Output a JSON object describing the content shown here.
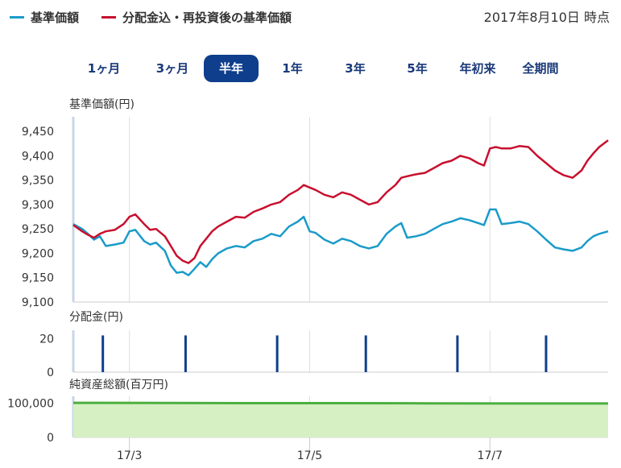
{
  "legend": {
    "nav_label": "基準価額",
    "nav_color": "#1a9bc9",
    "reinvest_label": "分配金込・再投資後の基準価額",
    "reinvest_color": "#c8102e"
  },
  "as_of": "2017年8月10日 時点",
  "tabs": [
    {
      "label": "1ヶ月",
      "active": false
    },
    {
      "label": "3ヶ月",
      "active": false
    },
    {
      "label": "半年",
      "active": true
    },
    {
      "label": "1年",
      "active": false
    },
    {
      "label": "3年",
      "active": false
    },
    {
      "label": "5年",
      "active": false
    },
    {
      "label": "年初来",
      "active": false
    },
    {
      "label": "全期間",
      "active": false
    }
  ],
  "colors": {
    "active_tab_bg": "#0e3e8c",
    "tab_text": "#1a3a7a",
    "distribution_bar": "#0e3e8c",
    "net_assets_line": "#4caf3f",
    "net_assets_fill": "#d6f0c4"
  },
  "chart_data": [
    {
      "type": "line",
      "ylabel": "基準価額(円)",
      "ylim": [
        9100,
        9480
      ],
      "yticks": [
        9100,
        9150,
        9200,
        9250,
        9300,
        9350,
        9400,
        9450
      ],
      "ytick_labels": [
        "9,100",
        "9,150",
        "9,200",
        "9,250",
        "9,300",
        "9,350",
        "9,400",
        "9,450"
      ],
      "xlim": [
        "2017-02-10",
        "2017-08-10"
      ],
      "xticks": [
        "2017-03-01",
        "2017-05-01",
        "2017-07-01"
      ],
      "xtick_labels": [
        "17/3",
        "17/5",
        "17/7"
      ],
      "grid": "vertical",
      "series": [
        {
          "name": "基準価額",
          "color": "#1a9bc9",
          "points": [
            [
              "2017-02-10",
              9260
            ],
            [
              "2017-02-13",
              9250
            ],
            [
              "2017-02-15",
              9240
            ],
            [
              "2017-02-17",
              9228
            ],
            [
              "2017-02-19",
              9235
            ],
            [
              "2017-02-21",
              9215
            ],
            [
              "2017-02-24",
              9218
            ],
            [
              "2017-02-27",
              9222
            ],
            [
              "2017-03-01",
              9245
            ],
            [
              "2017-03-03",
              9248
            ],
            [
              "2017-03-06",
              9225
            ],
            [
              "2017-03-08",
              9218
            ],
            [
              "2017-03-10",
              9222
            ],
            [
              "2017-03-13",
              9205
            ],
            [
              "2017-03-15",
              9175
            ],
            [
              "2017-03-17",
              9160
            ],
            [
              "2017-03-19",
              9162
            ],
            [
              "2017-03-21",
              9155
            ],
            [
              "2017-03-23",
              9168
            ],
            [
              "2017-03-25",
              9182
            ],
            [
              "2017-03-27",
              9172
            ],
            [
              "2017-03-29",
              9188
            ],
            [
              "2017-03-31",
              9200
            ],
            [
              "2017-04-03",
              9210
            ],
            [
              "2017-04-06",
              9215
            ],
            [
              "2017-04-09",
              9212
            ],
            [
              "2017-04-12",
              9225
            ],
            [
              "2017-04-15",
              9230
            ],
            [
              "2017-04-18",
              9240
            ],
            [
              "2017-04-21",
              9235
            ],
            [
              "2017-04-24",
              9255
            ],
            [
              "2017-04-27",
              9265
            ],
            [
              "2017-04-29",
              9275
            ],
            [
              "2017-05-01",
              9245
            ],
            [
              "2017-05-03",
              9242
            ],
            [
              "2017-05-06",
              9228
            ],
            [
              "2017-05-09",
              9220
            ],
            [
              "2017-05-12",
              9230
            ],
            [
              "2017-05-15",
              9225
            ],
            [
              "2017-05-18",
              9215
            ],
            [
              "2017-05-21",
              9210
            ],
            [
              "2017-05-24",
              9215
            ],
            [
              "2017-05-27",
              9240
            ],
            [
              "2017-05-30",
              9255
            ],
            [
              "2017-06-01",
              9262
            ],
            [
              "2017-06-03",
              9232
            ],
            [
              "2017-06-06",
              9235
            ],
            [
              "2017-06-09",
              9240
            ],
            [
              "2017-06-12",
              9250
            ],
            [
              "2017-06-15",
              9260
            ],
            [
              "2017-06-18",
              9265
            ],
            [
              "2017-06-21",
              9272
            ],
            [
              "2017-06-24",
              9268
            ],
            [
              "2017-06-27",
              9262
            ],
            [
              "2017-06-29",
              9258
            ],
            [
              "2017-07-01",
              9290
            ],
            [
              "2017-07-03",
              9290
            ],
            [
              "2017-07-05",
              9260
            ],
            [
              "2017-07-08",
              9262
            ],
            [
              "2017-07-11",
              9265
            ],
            [
              "2017-07-14",
              9260
            ],
            [
              "2017-07-17",
              9245
            ],
            [
              "2017-07-20",
              9228
            ],
            [
              "2017-07-23",
              9212
            ],
            [
              "2017-07-26",
              9208
            ],
            [
              "2017-07-29",
              9205
            ],
            [
              "2017-08-01",
              9212
            ],
            [
              "2017-08-03",
              9225
            ],
            [
              "2017-08-05",
              9235
            ],
            [
              "2017-08-07",
              9240
            ],
            [
              "2017-08-10",
              9245
            ]
          ]
        },
        {
          "name": "分配金込・再投資後の基準価額",
          "color": "#c8102e",
          "points": [
            [
              "2017-02-10",
              9258
            ],
            [
              "2017-02-13",
              9245
            ],
            [
              "2017-02-15",
              9238
            ],
            [
              "2017-02-17",
              9232
            ],
            [
              "2017-02-19",
              9240
            ],
            [
              "2017-02-21",
              9245
            ],
            [
              "2017-02-24",
              9248
            ],
            [
              "2017-02-27",
              9260
            ],
            [
              "2017-03-01",
              9275
            ],
            [
              "2017-03-03",
              9280
            ],
            [
              "2017-03-06",
              9260
            ],
            [
              "2017-03-08",
              9248
            ],
            [
              "2017-03-10",
              9250
            ],
            [
              "2017-03-13",
              9235
            ],
            [
              "2017-03-15",
              9215
            ],
            [
              "2017-03-17",
              9195
            ],
            [
              "2017-03-19",
              9185
            ],
            [
              "2017-03-21",
              9180
            ],
            [
              "2017-03-23",
              9190
            ],
            [
              "2017-03-25",
              9215
            ],
            [
              "2017-03-27",
              9230
            ],
            [
              "2017-03-29",
              9245
            ],
            [
              "2017-03-31",
              9255
            ],
            [
              "2017-04-03",
              9265
            ],
            [
              "2017-04-06",
              9275
            ],
            [
              "2017-04-09",
              9273
            ],
            [
              "2017-04-12",
              9285
            ],
            [
              "2017-04-15",
              9292
            ],
            [
              "2017-04-18",
              9300
            ],
            [
              "2017-04-21",
              9305
            ],
            [
              "2017-04-24",
              9320
            ],
            [
              "2017-04-27",
              9330
            ],
            [
              "2017-04-29",
              9340
            ],
            [
              "2017-05-01",
              9335
            ],
            [
              "2017-05-03",
              9330
            ],
            [
              "2017-05-06",
              9320
            ],
            [
              "2017-05-09",
              9315
            ],
            [
              "2017-05-12",
              9325
            ],
            [
              "2017-05-15",
              9320
            ],
            [
              "2017-05-18",
              9310
            ],
            [
              "2017-05-21",
              9300
            ],
            [
              "2017-05-24",
              9305
            ],
            [
              "2017-05-27",
              9325
            ],
            [
              "2017-05-30",
              9340
            ],
            [
              "2017-06-01",
              9355
            ],
            [
              "2017-06-03",
              9358
            ],
            [
              "2017-06-06",
              9362
            ],
            [
              "2017-06-09",
              9365
            ],
            [
              "2017-06-12",
              9375
            ],
            [
              "2017-06-15",
              9385
            ],
            [
              "2017-06-18",
              9390
            ],
            [
              "2017-06-21",
              9400
            ],
            [
              "2017-06-24",
              9395
            ],
            [
              "2017-06-27",
              9385
            ],
            [
              "2017-06-29",
              9380
            ],
            [
              "2017-07-01",
              9415
            ],
            [
              "2017-07-03",
              9418
            ],
            [
              "2017-07-05",
              9415
            ],
            [
              "2017-07-08",
              9415
            ],
            [
              "2017-07-11",
              9420
            ],
            [
              "2017-07-14",
              9418
            ],
            [
              "2017-07-17",
              9400
            ],
            [
              "2017-07-20",
              9385
            ],
            [
              "2017-07-23",
              9370
            ],
            [
              "2017-07-26",
              9360
            ],
            [
              "2017-07-29",
              9355
            ],
            [
              "2017-08-01",
              9370
            ],
            [
              "2017-08-03",
              9390
            ],
            [
              "2017-08-05",
              9405
            ],
            [
              "2017-08-07",
              9418
            ],
            [
              "2017-08-10",
              9432
            ]
          ]
        }
      ]
    },
    {
      "type": "bar",
      "ylabel": "分配金(円)",
      "ylim": [
        0,
        25
      ],
      "yticks": [
        0,
        20
      ],
      "ytick_labels": [
        "0",
        "20"
      ],
      "xlim": [
        "2017-02-10",
        "2017-08-10"
      ],
      "series": [
        {
          "points": [
            [
              "2017-02-20",
              20
            ],
            [
              "2017-03-20",
              20
            ],
            [
              "2017-04-20",
              20
            ],
            [
              "2017-05-20",
              20
            ],
            [
              "2017-06-20",
              20
            ],
            [
              "2017-07-20",
              20
            ]
          ]
        }
      ]
    },
    {
      "type": "area",
      "ylabel": "純資産総額(百万円)",
      "ylim": [
        0,
        120000
      ],
      "yticks": [
        0,
        100000
      ],
      "ytick_labels": [
        "0",
        "100,000"
      ],
      "xlim": [
        "2017-02-10",
        "2017-08-10"
      ],
      "xticks": [
        "2017-03-01",
        "2017-05-01",
        "2017-07-01"
      ],
      "xtick_labels": [
        "17/3",
        "17/5",
        "17/7"
      ],
      "series": [
        {
          "points": [
            [
              "2017-02-10",
              101000
            ],
            [
              "2017-03-10",
              100500
            ],
            [
              "2017-04-10",
              100000
            ],
            [
              "2017-05-10",
              100000
            ],
            [
              "2017-06-10",
              99500
            ],
            [
              "2017-07-10",
              99000
            ],
            [
              "2017-08-10",
              99000
            ]
          ]
        }
      ]
    }
  ]
}
